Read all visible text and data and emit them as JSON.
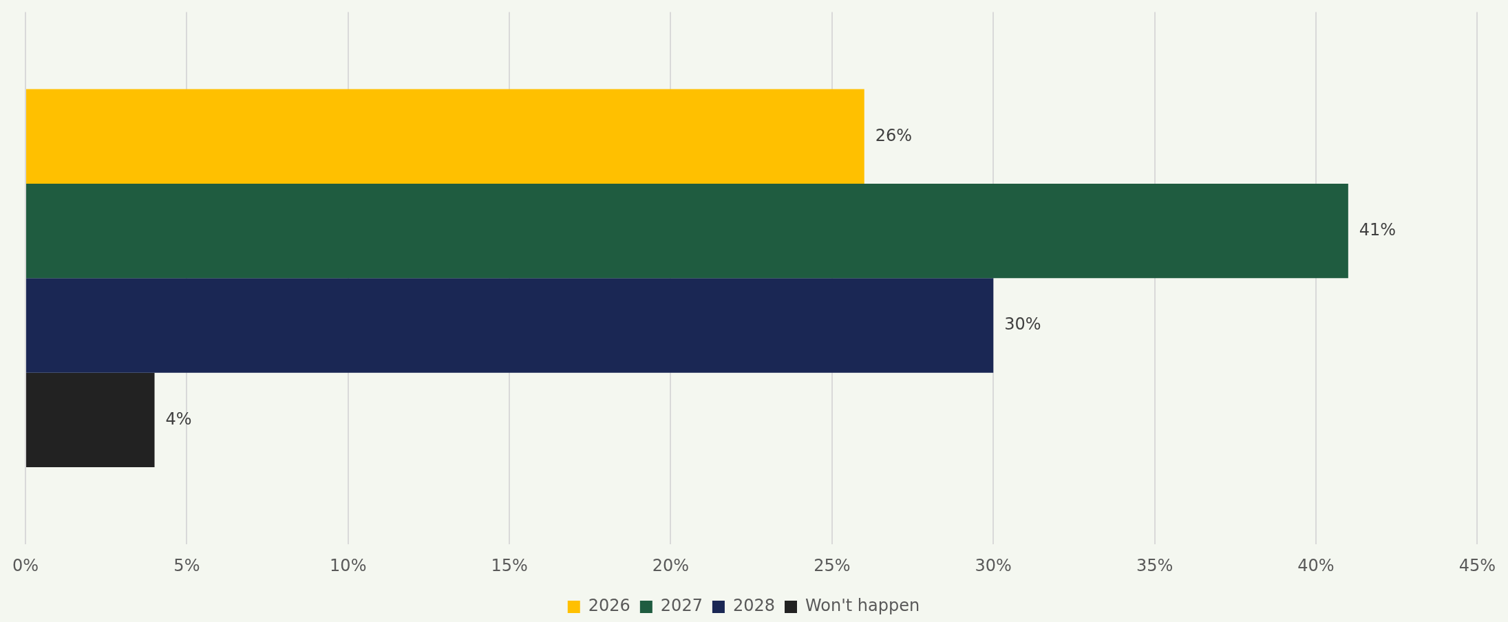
{
  "chart_data": {
    "type": "bar",
    "orientation": "horizontal",
    "categories": [
      null
    ],
    "series": [
      {
        "name": "2026",
        "color": "#ffc000",
        "values": [
          26
        ],
        "value_labels": [
          "26%"
        ]
      },
      {
        "name": "2027",
        "color": "#1f5c40",
        "values": [
          41
        ],
        "value_labels": [
          "41%"
        ]
      },
      {
        "name": "2028",
        "color": "#1a2754",
        "values": [
          30
        ],
        "value_labels": [
          "30%"
        ]
      },
      {
        "name": "Won't happen",
        "color": "#222222",
        "values": [
          4
        ],
        "value_labels": [
          "4%"
        ]
      }
    ],
    "xlim": [
      0,
      45
    ],
    "xticks": [
      {
        "value": 0,
        "label": "0%"
      },
      {
        "value": 5,
        "label": "5%"
      },
      {
        "value": 10,
        "label": "10%"
      },
      {
        "value": 15,
        "label": "15%"
      },
      {
        "value": 20,
        "label": "20%"
      },
      {
        "value": 25,
        "label": "25%"
      },
      {
        "value": 30,
        "label": "30%"
      },
      {
        "value": 35,
        "label": "35%"
      },
      {
        "value": 40,
        "label": "40%"
      },
      {
        "value": 45,
        "label": "45%"
      }
    ],
    "grid": "x",
    "legend": "bottom"
  }
}
